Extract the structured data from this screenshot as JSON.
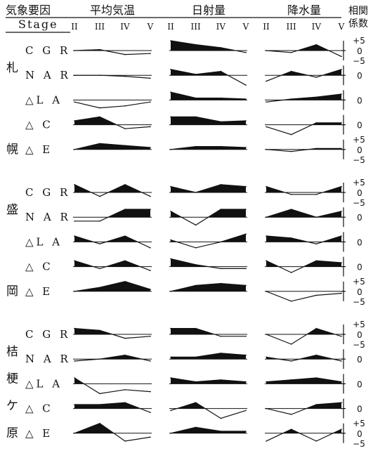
{
  "header": {
    "factor_label": "気象要因",
    "stage_label": "Stage",
    "columns": [
      "平均気温",
      "日射量",
      "降水量"
    ],
    "coef_label_line1": "相関",
    "coef_label_line2": "係数",
    "stages": [
      "II",
      "III",
      "IV",
      "V"
    ]
  },
  "sites": [
    {
      "name": "札幌",
      "chars": [
        "札",
        "幌"
      ]
    },
    {
      "name": "盛岡",
      "chars": [
        "盛",
        "岡"
      ]
    },
    {
      "name": "桔梗ケ原",
      "chars": [
        "桔",
        "梗",
        "ケ",
        "原"
      ]
    }
  ],
  "row_labels": [
    "C G R",
    "N A R",
    "△L A",
    "△ C",
    "△ E"
  ],
  "scale_ticks": {
    "plus": "+5",
    "zero": "0",
    "minus": "−5"
  },
  "chart_data": {
    "type": "area",
    "title": "",
    "x": [
      "II",
      "III",
      "IV",
      "V"
    ],
    "ylim": [
      -5,
      5
    ],
    "panels": [
      {
        "site": "札幌",
        "row": "CGR",
        "factor": "平均気温",
        "values": [
          0,
          0.5,
          -2,
          -1.5
        ]
      },
      {
        "site": "札幌",
        "row": "CGR",
        "factor": "日射量",
        "values": [
          5,
          3,
          1.5,
          -1
        ]
      },
      {
        "site": "札幌",
        "row": "CGR",
        "factor": "降水量",
        "values": [
          0,
          -1,
          3,
          -3
        ]
      },
      {
        "site": "札幌",
        "row": "NAR",
        "factor": "平均気温",
        "values": [
          0,
          0,
          -0.5,
          -1.5
        ]
      },
      {
        "site": "札幌",
        "row": "NAR",
        "factor": "日射量",
        "values": [
          3,
          0.5,
          2,
          -5
        ]
      },
      {
        "site": "札幌",
        "row": "NAR",
        "factor": "降水量",
        "values": [
          -3,
          2,
          -1,
          3
        ]
      },
      {
        "site": "札幌",
        "row": "△LA",
        "factor": "平均気温",
        "values": [
          -1,
          -4,
          -3,
          -1
        ]
      },
      {
        "site": "札幌",
        "row": "△LA",
        "factor": "日射量",
        "values": [
          4,
          1,
          1,
          0.5
        ]
      },
      {
        "site": "札幌",
        "row": "△LA",
        "factor": "降水量",
        "values": [
          -1,
          0.5,
          1.5,
          3
        ]
      },
      {
        "site": "札幌",
        "row": "△C",
        "factor": "平均気温",
        "values": [
          2,
          4,
          -2,
          -1
        ]
      },
      {
        "site": "札幌",
        "row": "△C",
        "factor": "日射量",
        "values": [
          4,
          4,
          1.5,
          2
        ]
      },
      {
        "site": "札幌",
        "row": "△C",
        "factor": "降水量",
        "values": [
          -1,
          -5,
          1,
          1
        ]
      },
      {
        "site": "札幌",
        "row": "△E",
        "factor": "平均気温",
        "values": [
          0,
          3,
          2,
          1
        ]
      },
      {
        "site": "札幌",
        "row": "△E",
        "factor": "日射量",
        "values": [
          0,
          1.5,
          1.5,
          1
        ]
      },
      {
        "site": "札幌",
        "row": "△E",
        "factor": "降水量",
        "values": [
          0,
          -1,
          0.5,
          0.5
        ]
      },
      {
        "site": "盛岡",
        "row": "CGR",
        "factor": "平均気温",
        "values": [
          4,
          -2,
          4,
          -2
        ]
      },
      {
        "site": "盛岡",
        "row": "CGR",
        "factor": "日射量",
        "values": [
          3,
          0,
          4,
          3
        ]
      },
      {
        "site": "盛岡",
        "row": "CGR",
        "factor": "降水量",
        "values": [
          3,
          -1,
          -1,
          3
        ]
      },
      {
        "site": "盛岡",
        "row": "NAR",
        "factor": "平均気温",
        "values": [
          -2,
          -2,
          4,
          4
        ]
      },
      {
        "site": "盛岡",
        "row": "NAR",
        "factor": "日射量",
        "values": [
          3,
          -4,
          4,
          4
        ]
      },
      {
        "site": "盛岡",
        "row": "NAR",
        "factor": "降水量",
        "values": [
          0,
          4,
          0,
          3
        ]
      },
      {
        "site": "盛岡",
        "row": "△LA",
        "factor": "平均気温",
        "values": [
          3,
          -1,
          3,
          -3
        ]
      },
      {
        "site": "盛岡",
        "row": "△LA",
        "factor": "日射量",
        "values": [
          1,
          -3,
          0,
          4
        ]
      },
      {
        "site": "盛岡",
        "row": "△LA",
        "factor": "降水量",
        "values": [
          3,
          2,
          -1,
          3
        ]
      },
      {
        "site": "盛岡",
        "row": "△C",
        "factor": "平均気温",
        "values": [
          3,
          -1,
          3,
          -2
        ]
      },
      {
        "site": "盛岡",
        "row": "△C",
        "factor": "日射量",
        "values": [
          4,
          1,
          -1,
          -1
        ]
      },
      {
        "site": "盛岡",
        "row": "△C",
        "factor": "降水量",
        "values": [
          3,
          -3,
          3,
          2
        ]
      },
      {
        "site": "盛岡",
        "row": "△E",
        "factor": "平均気温",
        "values": [
          0,
          2,
          5,
          1
        ]
      },
      {
        "site": "盛岡",
        "row": "△E",
        "factor": "日射量",
        "values": [
          0,
          3,
          4,
          3
        ]
      },
      {
        "site": "盛岡",
        "row": "△E",
        "factor": "降水量",
        "values": [
          0,
          -5,
          -2,
          -1
        ]
      },
      {
        "site": "桔梗ケ原",
        "row": "CGR",
        "factor": "平均気温",
        "values": [
          3,
          2,
          -2,
          -1
        ]
      },
      {
        "site": "桔梗ケ原",
        "row": "CGR",
        "factor": "日射量",
        "values": [
          3,
          3,
          -1,
          -1
        ]
      },
      {
        "site": "桔梗ケ原",
        "row": "CGR",
        "factor": "降水量",
        "values": [
          0,
          -5,
          3,
          -1
        ]
      },
      {
        "site": "桔梗ケ原",
        "row": "NAR",
        "factor": "平均気温",
        "values": [
          -1,
          0,
          2,
          -1
        ]
      },
      {
        "site": "桔梗ケ原",
        "row": "NAR",
        "factor": "日射量",
        "values": [
          1,
          1,
          3,
          2
        ]
      },
      {
        "site": "桔梗ケ原",
        "row": "NAR",
        "factor": "降水量",
        "values": [
          1,
          -1,
          2,
          -1
        ]
      },
      {
        "site": "桔梗ケ原",
        "row": "△LA",
        "factor": "平均気温",
        "values": [
          3,
          -5,
          -3,
          -4
        ]
      },
      {
        "site": "桔梗ケ原",
        "row": "△LA",
        "factor": "日射量",
        "values": [
          3,
          1,
          2,
          1
        ]
      },
      {
        "site": "桔梗ケ原",
        "row": "△LA",
        "factor": "降水量",
        "values": [
          1,
          2,
          3,
          1
        ]
      },
      {
        "site": "桔梗ケ原",
        "row": "△C",
        "factor": "平均気温",
        "values": [
          2,
          2,
          3,
          -2
        ]
      },
      {
        "site": "桔梗ケ原",
        "row": "△C",
        "factor": "日射量",
        "values": [
          -1,
          3,
          -5,
          -1
        ]
      },
      {
        "site": "桔梗ケ原",
        "row": "△C",
        "factor": "降水量",
        "values": [
          0,
          -3,
          2,
          3
        ]
      },
      {
        "site": "桔梗ケ原",
        "row": "△E",
        "factor": "平均気温",
        "values": [
          0,
          5,
          -4,
          -2
        ]
      },
      {
        "site": "桔梗ケ原",
        "row": "△E",
        "factor": "日射量",
        "values": [
          0,
          3,
          1,
          1
        ]
      },
      {
        "site": "桔梗ケ原",
        "row": "△E",
        "factor": "降水量",
        "values": [
          -4,
          2,
          -4,
          2
        ]
      }
    ]
  }
}
